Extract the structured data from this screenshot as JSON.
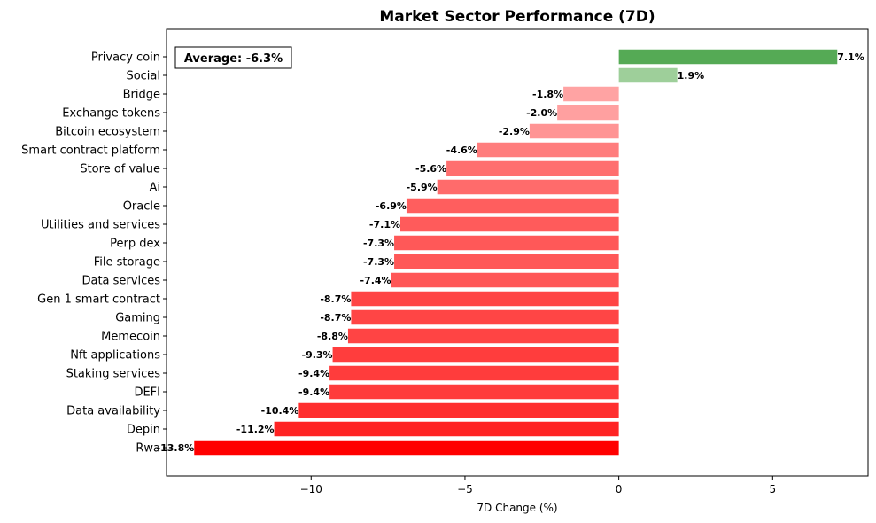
{
  "chart_data": {
    "type": "bar",
    "orientation": "horizontal",
    "title": "Market Sector Performance (7D)",
    "xlabel": "7D Change (%)",
    "ylabel": "",
    "xlim": [
      -14.7,
      8.1
    ],
    "xticks": [
      -10,
      -5,
      0,
      5
    ],
    "xtick_labels": [
      "−10",
      "−5",
      "0",
      "5"
    ],
    "annotation": "Average: -6.3%",
    "colors": {
      "positive_strong": "#55aa55",
      "positive_weak": "#9ecf9a",
      "negative_max": "#ff0000",
      "negative_min": "#ffa3a3"
    },
    "categories": [
      "Privacy coin",
      "Social",
      "Bridge",
      "Exchange tokens",
      "Bitcoin ecosystem",
      "Smart contract platform",
      "Store of value",
      "Ai",
      "Oracle",
      "Utilities and services",
      "Perp dex",
      "File storage",
      "Data services",
      "Gen 1 smart contract",
      "Gaming",
      "Memecoin",
      "Nft applications",
      "Staking services",
      "DEFI",
      "Data availability",
      "Depin",
      "Rwa"
    ],
    "values": [
      7.1,
      1.9,
      -1.8,
      -2.0,
      -2.9,
      -4.6,
      -5.6,
      -5.9,
      -6.9,
      -7.1,
      -7.3,
      -7.3,
      -7.4,
      -8.7,
      -8.7,
      -8.8,
      -9.3,
      -9.4,
      -9.4,
      -10.4,
      -11.2,
      -13.8
    ],
    "value_labels": [
      "7.1%",
      "1.9%",
      "-1.8%",
      "-2.0%",
      "-2.9%",
      "-4.6%",
      "-5.6%",
      "-5.9%",
      "-6.9%",
      "-7.1%",
      "-7.3%",
      "-7.3%",
      "-7.4%",
      "-8.7%",
      "-8.7%",
      "-8.8%",
      "-9.3%",
      "-9.4%",
      "-9.4%",
      "-10.4%",
      "-11.2%",
      "-13.8%"
    ]
  }
}
